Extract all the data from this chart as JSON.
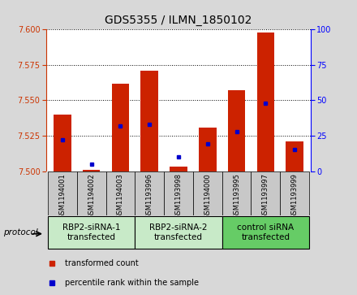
{
  "title": "GDS5355 / ILMN_1850102",
  "samples": [
    "GSM1194001",
    "GSM1194002",
    "GSM1194003",
    "GSM1193996",
    "GSM1193998",
    "GSM1194000",
    "GSM1193995",
    "GSM1193997",
    "GSM1193999"
  ],
  "red_values": [
    7.54,
    7.501,
    7.562,
    7.571,
    7.503,
    7.531,
    7.557,
    7.598,
    7.521
  ],
  "blue_values_pct": [
    22,
    5,
    32,
    33,
    10,
    19,
    28,
    48,
    15
  ],
  "ylim_left": [
    7.5,
    7.6
  ],
  "ylim_right": [
    0,
    100
  ],
  "yticks_left": [
    7.5,
    7.525,
    7.55,
    7.575,
    7.6
  ],
  "yticks_right": [
    0,
    25,
    50,
    75,
    100
  ],
  "groups": [
    {
      "label": "RBP2-siRNA-1\ntransfected",
      "indices": [
        0,
        1,
        2
      ],
      "color": "#c8eac8"
    },
    {
      "label": "RBP2-siRNA-2\ntransfected",
      "indices": [
        3,
        4,
        5
      ],
      "color": "#c8eac8"
    },
    {
      "label": "control siRNA\ntransfected",
      "indices": [
        6,
        7,
        8
      ],
      "color": "#66cc66"
    }
  ],
  "bar_color": "#cc2200",
  "blue_color": "#0000cc",
  "bar_bottom": 7.5,
  "bar_width": 0.6,
  "legend_items": [
    {
      "color": "#cc2200",
      "label": "transformed count"
    },
    {
      "color": "#0000cc",
      "label": "percentile rank within the sample"
    }
  ],
  "bg_color": "#d8d8d8",
  "plot_bg": "#ffffff",
  "title_fontsize": 10,
  "tick_fontsize": 7,
  "sample_fontsize": 6,
  "group_fontsize": 7.5,
  "legend_fontsize": 7
}
